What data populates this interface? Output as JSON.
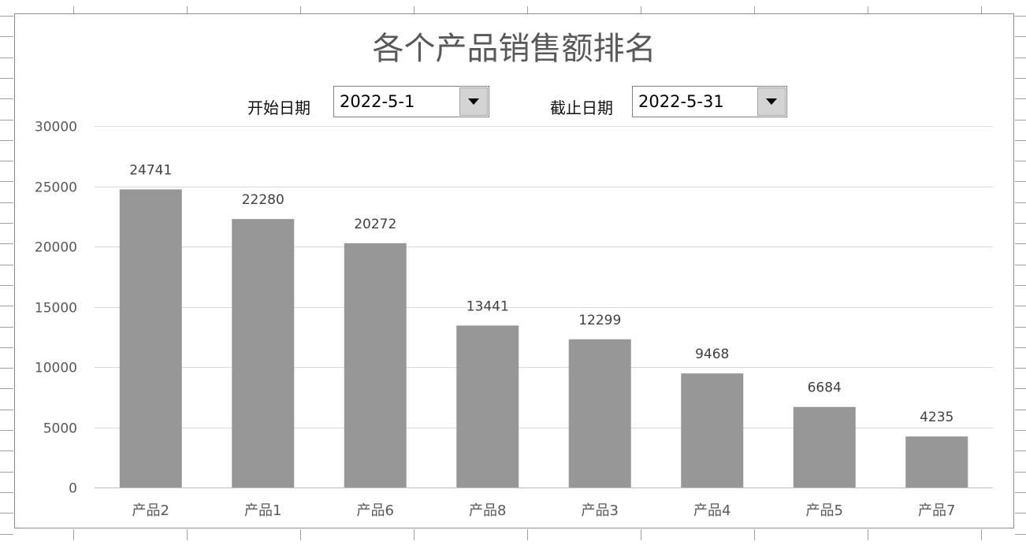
{
  "chart_data": {
    "type": "bar",
    "title": "各个产品销售额排名",
    "categories": [
      "产品2",
      "产品1",
      "产品6",
      "产品8",
      "产品3",
      "产品4",
      "产品5",
      "产品7"
    ],
    "values": [
      24741,
      22280,
      20272,
      13441,
      12299,
      9468,
      6684,
      4235
    ],
    "ylim": [
      0,
      30000
    ],
    "yticks": [
      0,
      5000,
      10000,
      15000,
      20000,
      25000,
      30000
    ],
    "grid": true,
    "data_labels": true,
    "bar_color": "#979797"
  },
  "filters": {
    "start_date": {
      "label": "开始日期",
      "value": "2022-5-1",
      "icon": "dropdown-arrow-icon"
    },
    "end_date": {
      "label": "截止日期",
      "value": "2022-5-31",
      "icon": "dropdown-arrow-icon"
    }
  }
}
